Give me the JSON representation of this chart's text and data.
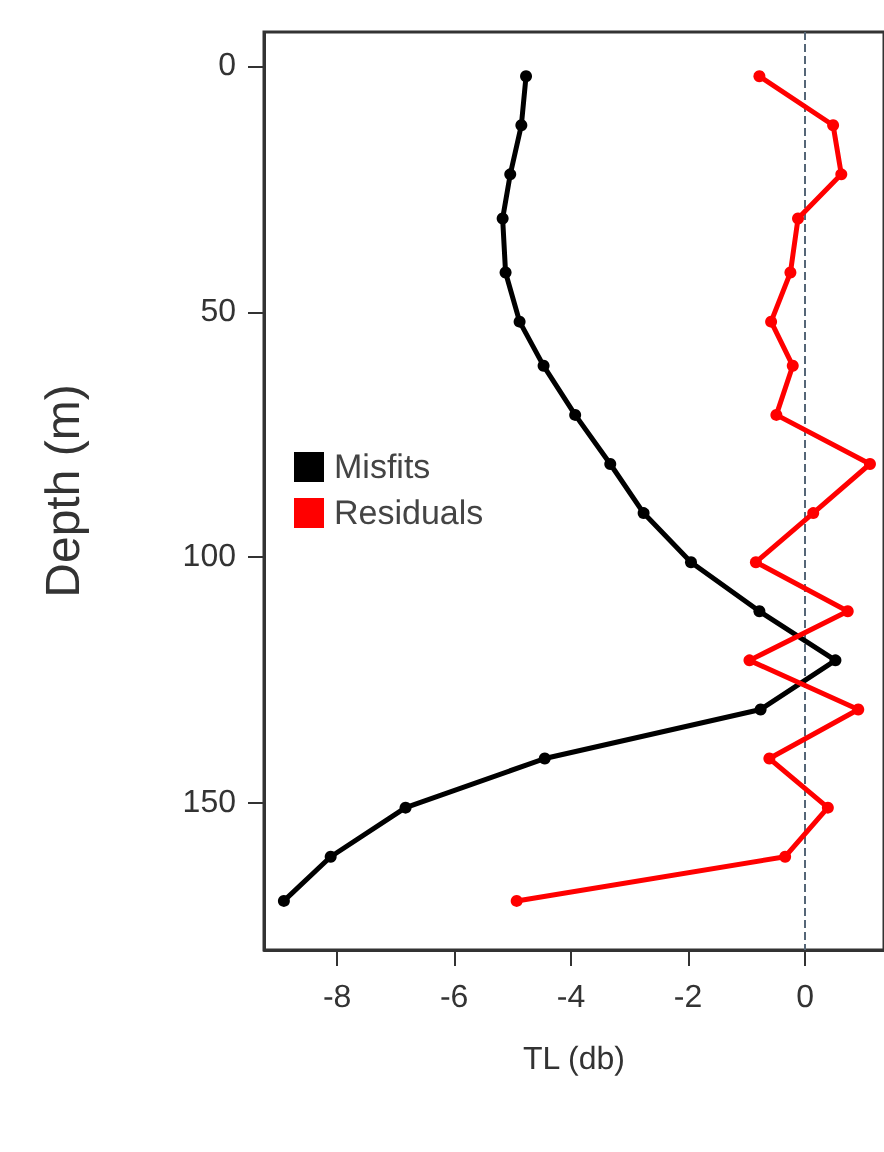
{
  "chart_data": {
    "type": "line",
    "xlabel": "TL (db)",
    "ylabel": "Depth (m)",
    "xlim": [
      -9.25,
      1.35
    ],
    "xticks": [
      -8,
      -6,
      -4,
      -2,
      0
    ],
    "ylim": [
      180,
      -7
    ],
    "yticks": [
      0,
      50,
      100,
      150
    ],
    "series": [
      {
        "name": "Misfits",
        "color": "#000000",
        "x": [
          -4.77,
          -4.85,
          -5.04,
          -5.17,
          -5.12,
          -4.88,
          -4.47,
          -3.93,
          -3.33,
          -2.76,
          -1.95,
          -0.78,
          0.52,
          -0.76,
          -4.45,
          -6.83,
          -8.11,
          -8.91
        ],
        "values": [
          2,
          12,
          22,
          31,
          42,
          52,
          61,
          71,
          81,
          91,
          101,
          111,
          121,
          131,
          141,
          151,
          161,
          170
        ]
      },
      {
        "name": "Residuals",
        "color": "#ff0000",
        "x": [
          -0.78,
          0.48,
          0.62,
          -0.12,
          -0.25,
          -0.58,
          -0.21,
          -0.49,
          1.11,
          0.14,
          -0.84,
          0.73,
          -0.95,
          0.91,
          -0.61,
          0.39,
          -0.34,
          -4.93
        ],
        "values": [
          2,
          12,
          22,
          31,
          42,
          52,
          61,
          71,
          81,
          91,
          101,
          111,
          121,
          131,
          141,
          151,
          161,
          170
        ]
      }
    ],
    "ref_lines": [
      {
        "axis": "x",
        "value": 0,
        "color": "#556677",
        "line_style": "dashed"
      }
    ],
    "legend": "left",
    "marker": "circle",
    "line_style": "solid",
    "grid": false
  }
}
